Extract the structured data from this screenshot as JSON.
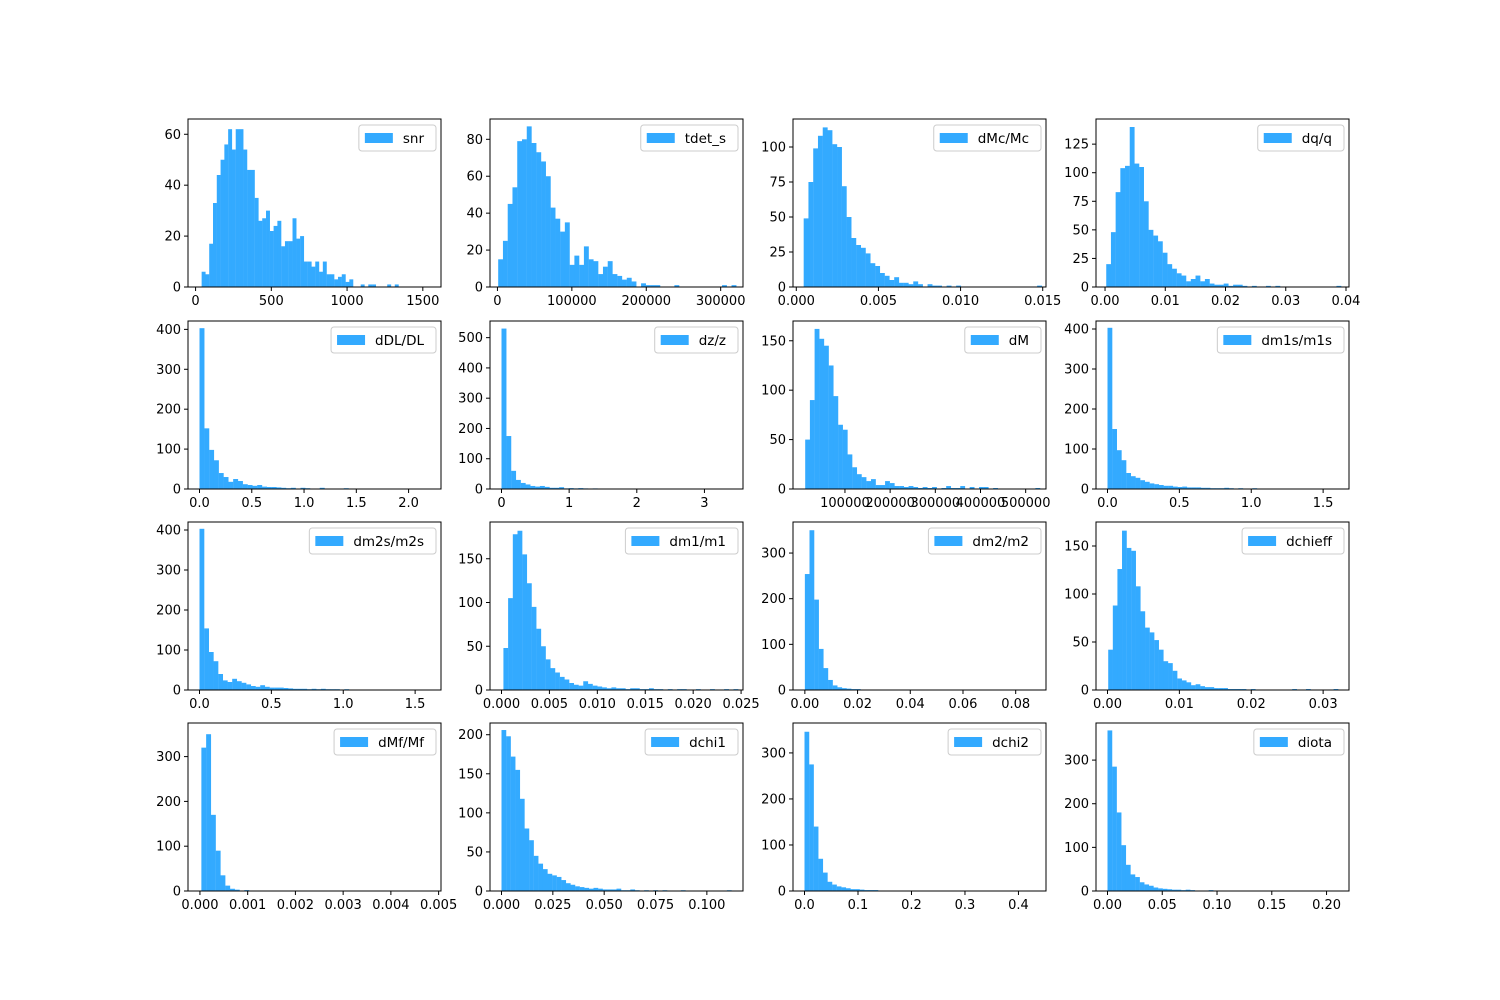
{
  "figure": {
    "background": "#ffffff",
    "bar_color": "#33aaff"
  },
  "chart_data": [
    {
      "type": "bar",
      "name": "snr",
      "legend": "snr",
      "xlim": [
        -50,
        1620
      ],
      "ylim": [
        0,
        66
      ],
      "xticks": [
        0,
        500,
        1000,
        1500
      ],
      "xtick_labels": [
        "0",
        "500",
        "1000",
        "1500"
      ],
      "yticks": [
        0,
        20,
        40,
        60
      ],
      "ytick_labels": [
        "0",
        "20",
        "40",
        "60"
      ],
      "bin_start": 40,
      "bin_width": 25,
      "counts": [
        6,
        5,
        17,
        33,
        44,
        50,
        56,
        62,
        54,
        62,
        62,
        54,
        46,
        46,
        35,
        26,
        27,
        30,
        22,
        24,
        26,
        16,
        18,
        18,
        27,
        19,
        20,
        10,
        10,
        8,
        10,
        6,
        10,
        5,
        5,
        3,
        4,
        5,
        2,
        3,
        0,
        0,
        1,
        0,
        1,
        1,
        0,
        0,
        0,
        1,
        0,
        1
      ]
    },
    {
      "type": "bar",
      "name": "tdet_s",
      "legend": "tdet_s",
      "xlim": [
        -10000,
        330000
      ],
      "ylim": [
        0,
        91
      ],
      "xticks": [
        0,
        100000,
        200000,
        300000
      ],
      "xtick_labels": [
        "0",
        "100000",
        "200000",
        "300000"
      ],
      "yticks": [
        0,
        20,
        40,
        60,
        80
      ],
      "ytick_labels": [
        "0",
        "20",
        "40",
        "60",
        "80"
      ],
      "bin_start": 1000,
      "bin_width": 6400,
      "counts": [
        15,
        25,
        45,
        54,
        79,
        80,
        87,
        78,
        73,
        68,
        60,
        43,
        37,
        30,
        35,
        12,
        17,
        12,
        22,
        15,
        14,
        7,
        11,
        14,
        7,
        6,
        4,
        5,
        3,
        0,
        2,
        1,
        1,
        1,
        0,
        0,
        0,
        1,
        0,
        0,
        0,
        0,
        0,
        0,
        0,
        0,
        0,
        1,
        0,
        1
      ]
    },
    {
      "type": "bar",
      "name": "dMc/Mc",
      "legend": "dMc/Mc",
      "xlim": [
        -0.0002,
        0.0152
      ],
      "ylim": [
        0,
        120
      ],
      "xticks": [
        0,
        0.005,
        0.01,
        0.015
      ],
      "xtick_labels": [
        "0.000",
        "0.005",
        "0.010",
        "0.015"
      ],
      "yticks": [
        0,
        25,
        50,
        75,
        100
      ],
      "ytick_labels": [
        "0",
        "25",
        "50",
        "75",
        "100"
      ],
      "bin_start": 0.00045,
      "bin_width": 0.00029,
      "counts": [
        49,
        75,
        99,
        108,
        114,
        112,
        102,
        100,
        72,
        50,
        35,
        30,
        28,
        24,
        17,
        15,
        10,
        8,
        5,
        7,
        3,
        3,
        2,
        4,
        2,
        0,
        2,
        1,
        1,
        0,
        1,
        0,
        1,
        0,
        0,
        0,
        0,
        0,
        0,
        0,
        0,
        0,
        0,
        0,
        0,
        0,
        0,
        0,
        0,
        1
      ]
    },
    {
      "type": "bar",
      "name": "dq/q",
      "legend": "dq/q",
      "xlim": [
        -0.0015,
        0.0405
      ],
      "ylim": [
        0,
        147
      ],
      "xticks": [
        0,
        0.01,
        0.02,
        0.03,
        0.04
      ],
      "xtick_labels": [
        "0.00",
        "0.01",
        "0.02",
        "0.03",
        "0.04"
      ],
      "yticks": [
        0,
        25,
        50,
        75,
        100,
        125
      ],
      "ytick_labels": [
        "0",
        "25",
        "50",
        "75",
        "100",
        "125"
      ],
      "bin_start": 0.0002,
      "bin_width": 0.00078,
      "counts": [
        20,
        48,
        83,
        104,
        106,
        140,
        108,
        105,
        75,
        50,
        45,
        40,
        30,
        20,
        16,
        12,
        10,
        5,
        7,
        10,
        5,
        7,
        3,
        2,
        2,
        3,
        1,
        2,
        2,
        1,
        0,
        1,
        0,
        0,
        1,
        0,
        1,
        0,
        0,
        0,
        0,
        0,
        0,
        0,
        0,
        0,
        0,
        0,
        0,
        1
      ]
    },
    {
      "type": "bar",
      "name": "dDL/DL",
      "legend": "dDL/DL",
      "xlim": [
        -0.11,
        2.31
      ],
      "ylim": [
        0,
        421
      ],
      "xticks": [
        0,
        0.5,
        1,
        1.5,
        2
      ],
      "xtick_labels": [
        "0.0",
        "0.5",
        "1.0",
        "1.5",
        "2.0"
      ],
      "yticks": [
        0,
        100,
        200,
        300,
        400
      ],
      "ytick_labels": [
        "0",
        "100",
        "200",
        "300",
        "400"
      ],
      "bin_start": 0.0,
      "bin_width": 0.046,
      "counts": [
        403,
        152,
        98,
        72,
        40,
        30,
        18,
        25,
        20,
        12,
        10,
        8,
        10,
        6,
        5,
        5,
        4,
        3,
        2,
        3,
        1,
        3,
        2,
        1,
        1,
        3,
        0,
        1,
        1,
        0,
        2,
        1,
        0,
        1,
        0,
        0,
        0,
        0,
        0,
        0,
        0,
        0,
        0,
        0,
        0,
        0,
        0,
        0,
        0,
        1
      ]
    },
    {
      "type": "bar",
      "name": "dz/z",
      "legend": "dz/z",
      "xlim": [
        -0.17,
        3.57
      ],
      "ylim": [
        0,
        555
      ],
      "xticks": [
        0,
        1,
        2,
        3
      ],
      "xtick_labels": [
        "0",
        "1",
        "2",
        "3"
      ],
      "yticks": [
        0,
        100,
        200,
        300,
        400,
        500
      ],
      "ytick_labels": [
        "0",
        "100",
        "200",
        "300",
        "400",
        "500"
      ],
      "bin_start": 0.0,
      "bin_width": 0.071,
      "counts": [
        530,
        175,
        60,
        30,
        20,
        15,
        10,
        8,
        10,
        7,
        4,
        4,
        6,
        2,
        3,
        2,
        3,
        2,
        1,
        2,
        1,
        0,
        1,
        1,
        0,
        1,
        1,
        0,
        1,
        0,
        1,
        0,
        0,
        1,
        0,
        0,
        1,
        0,
        0,
        0,
        0,
        0,
        0,
        0,
        0,
        0,
        0,
        0,
        0,
        1
      ]
    },
    {
      "type": "bar",
      "name": "dM",
      "legend": "dM",
      "xlim": [
        -15000,
        545000
      ],
      "ylim": [
        0,
        170
      ],
      "xticks": [
        100000,
        200000,
        300000,
        400000,
        500000
      ],
      "xtick_labels": [
        "100000",
        "200000",
        "300000",
        "400000",
        "500000"
      ],
      "yticks": [
        0,
        50,
        100,
        150
      ],
      "ytick_labels": [
        "0",
        "50",
        "100",
        "150"
      ],
      "bin_start": 12000,
      "bin_width": 10400,
      "counts": [
        50,
        90,
        162,
        152,
        145,
        125,
        94,
        65,
        60,
        35,
        22,
        15,
        12,
        8,
        10,
        4,
        4,
        8,
        6,
        3,
        3,
        2,
        3,
        2,
        1,
        2,
        1,
        2,
        0,
        1,
        3,
        1,
        1,
        3,
        0,
        2,
        0,
        2,
        2,
        0,
        1,
        0,
        0,
        0,
        0,
        0,
        0,
        0,
        0,
        1
      ]
    },
    {
      "type": "bar",
      "name": "dm1s/m1s",
      "legend": "dm1s/m1s",
      "xlim": [
        -0.08,
        1.68
      ],
      "ylim": [
        0,
        420
      ],
      "xticks": [
        0,
        0.5,
        1,
        1.5
      ],
      "xtick_labels": [
        "0.0",
        "0.5",
        "1.0",
        "1.5"
      ],
      "yticks": [
        0,
        100,
        200,
        300,
        400
      ],
      "ytick_labels": [
        "0",
        "100",
        "200",
        "300",
        "400"
      ],
      "bin_start": 0.0,
      "bin_width": 0.0325,
      "counts": [
        403,
        150,
        97,
        72,
        40,
        32,
        28,
        22,
        18,
        14,
        12,
        10,
        8,
        8,
        6,
        5,
        6,
        4,
        4,
        4,
        3,
        3,
        2,
        2,
        2,
        3,
        2,
        1,
        2,
        1,
        1,
        2,
        1,
        1,
        1,
        0,
        0,
        0,
        0,
        0,
        0,
        1,
        0,
        0,
        0,
        0,
        0,
        0,
        0,
        1
      ]
    },
    {
      "type": "bar",
      "name": "dm2s/m2s",
      "legend": "dm2s/m2s",
      "xlim": [
        -0.08,
        1.68
      ],
      "ylim": [
        0,
        420
      ],
      "xticks": [
        0,
        0.5,
        1,
        1.5
      ],
      "xtick_labels": [
        "0.0",
        "0.5",
        "1.0",
        "1.5"
      ],
      "yticks": [
        0,
        100,
        200,
        300,
        400
      ],
      "ytick_labels": [
        "0",
        "100",
        "200",
        "300",
        "400"
      ],
      "bin_start": 0.0,
      "bin_width": 0.0325,
      "counts": [
        403,
        154,
        95,
        72,
        40,
        24,
        20,
        28,
        22,
        18,
        14,
        10,
        8,
        12,
        8,
        6,
        6,
        6,
        5,
        4,
        3,
        3,
        3,
        2,
        3,
        2,
        3,
        2,
        2,
        2,
        1,
        2,
        1,
        1,
        0,
        0,
        0,
        0,
        0,
        0,
        0,
        0,
        0,
        0,
        0,
        0,
        0,
        0,
        0,
        1
      ]
    },
    {
      "type": "bar",
      "name": "dm1/m1",
      "legend": "dm1/m1",
      "xlim": [
        -0.0012,
        0.0252
      ],
      "ylim": [
        0,
        192
      ],
      "xticks": [
        0,
        0.005,
        0.01,
        0.015,
        0.02,
        0.025
      ],
      "xtick_labels": [
        "0.000",
        "0.005",
        "0.010",
        "0.015",
        "0.020",
        "0.025"
      ],
      "yticks": [
        0,
        50,
        100,
        150
      ],
      "ytick_labels": [
        "0",
        "50",
        "100",
        "150"
      ],
      "bin_start": 0.0002,
      "bin_width": 0.00049,
      "counts": [
        48,
        105,
        178,
        182,
        155,
        122,
        95,
        70,
        50,
        35,
        25,
        20,
        15,
        12,
        8,
        6,
        5,
        10,
        7,
        5,
        4,
        3,
        2,
        3,
        2,
        2,
        1,
        2,
        2,
        1,
        1,
        2,
        1,
        1,
        0,
        1,
        0,
        1,
        1,
        0,
        0,
        1,
        0,
        0,
        1,
        0,
        0,
        1,
        0,
        1
      ]
    },
    {
      "type": "bar",
      "name": "dm2/m2",
      "legend": "dm2/m2",
      "xlim": [
        -0.0045,
        0.0915
      ],
      "ylim": [
        0,
        368
      ],
      "xticks": [
        0,
        0.02,
        0.04,
        0.06,
        0.08
      ],
      "xtick_labels": [
        "0.00",
        "0.02",
        "0.04",
        "0.06",
        "0.08"
      ],
      "yticks": [
        0,
        100,
        200,
        300
      ],
      "ytick_labels": [
        "0",
        "100",
        "200",
        "300"
      ],
      "bin_start": 0.0,
      "bin_width": 0.00176,
      "counts": [
        254,
        350,
        198,
        90,
        48,
        22,
        10,
        6,
        4,
        3,
        2,
        2,
        1,
        1,
        0,
        1,
        0,
        0,
        0,
        0,
        0,
        0,
        0,
        0,
        0,
        0,
        0,
        0,
        0,
        0,
        0,
        0,
        0,
        0,
        0,
        0,
        0,
        0,
        0,
        0,
        0,
        0,
        0,
        0,
        0,
        0,
        0,
        0,
        0,
        1
      ]
    },
    {
      "type": "bar",
      "name": "dchieff",
      "legend": "dchieff",
      "xlim": [
        -0.0016,
        0.0336
      ],
      "ylim": [
        0,
        175
      ],
      "xticks": [
        0,
        0.01,
        0.02,
        0.03
      ],
      "xtick_labels": [
        "0.00",
        "0.01",
        "0.02",
        "0.03"
      ],
      "yticks": [
        0,
        50,
        100,
        150
      ],
      "ytick_labels": [
        "0",
        "50",
        "100",
        "150"
      ],
      "bin_start": 0.0001,
      "bin_width": 0.00064,
      "counts": [
        42,
        88,
        126,
        166,
        148,
        145,
        108,
        82,
        65,
        60,
        52,
        42,
        30,
        28,
        20,
        12,
        10,
        8,
        5,
        6,
        4,
        3,
        3,
        2,
        2,
        2,
        1,
        1,
        1,
        1,
        0,
        1,
        0,
        0,
        0,
        0,
        0,
        0,
        0,
        0,
        1,
        0,
        0,
        1,
        0,
        0,
        0,
        0,
        0,
        1
      ]
    },
    {
      "type": "bar",
      "name": "dMf/Mf",
      "legend": "dMf/Mf",
      "xlim": [
        -0.00025,
        0.00505
      ],
      "ylim": [
        0,
        375
      ],
      "xticks": [
        0,
        0.001,
        0.002,
        0.003,
        0.004,
        0.005
      ],
      "xtick_labels": [
        "0.000",
        "0.001",
        "0.002",
        "0.003",
        "0.004",
        "0.005"
      ],
      "yticks": [
        0,
        100,
        200,
        300
      ],
      "ytick_labels": [
        "0",
        "100",
        "200",
        "300"
      ],
      "bin_start": 3e-05,
      "bin_width": 0.0001,
      "counts": [
        320,
        350,
        170,
        90,
        35,
        12,
        5,
        3,
        1,
        2,
        1,
        0,
        0,
        0,
        0,
        0,
        0,
        0,
        0,
        0,
        0,
        0,
        0,
        0,
        0,
        0,
        0,
        0,
        0,
        0,
        0,
        0,
        0,
        0,
        0,
        0,
        0,
        0,
        0,
        0,
        0,
        0,
        0,
        0,
        0,
        0,
        0,
        0,
        0,
        1
      ]
    },
    {
      "type": "bar",
      "name": "dchi1",
      "legend": "dchi1",
      "xlim": [
        -0.0056,
        0.1176
      ],
      "ylim": [
        0,
        215
      ],
      "xticks": [
        0,
        0.025,
        0.05,
        0.075,
        0.1
      ],
      "xtick_labels": [
        "0.000",
        "0.025",
        "0.050",
        "0.075",
        "0.100"
      ],
      "yticks": [
        0,
        50,
        100,
        150,
        200
      ],
      "ytick_labels": [
        "0",
        "50",
        "100",
        "150",
        "200"
      ],
      "bin_start": 0.0,
      "bin_width": 0.00224,
      "counts": [
        206,
        198,
        172,
        155,
        118,
        80,
        65,
        45,
        35,
        28,
        22,
        20,
        18,
        14,
        10,
        8,
        6,
        5,
        4,
        3,
        4,
        3,
        2,
        2,
        2,
        3,
        1,
        1,
        2,
        1,
        0,
        1,
        0,
        1,
        0,
        1,
        0,
        0,
        0,
        1,
        0,
        0,
        0,
        0,
        0,
        0,
        0,
        0,
        0,
        1
      ]
    },
    {
      "type": "bar",
      "name": "dchi2",
      "legend": "dchi2",
      "xlim": [
        -0.0215,
        0.4515
      ],
      "ylim": [
        0,
        365
      ],
      "xticks": [
        0,
        0.1,
        0.2,
        0.3,
        0.4
      ],
      "xtick_labels": [
        "0.0",
        "0.1",
        "0.2",
        "0.3",
        "0.4"
      ],
      "yticks": [
        0,
        100,
        200,
        300
      ],
      "ytick_labels": [
        "0",
        "100",
        "200",
        "300"
      ],
      "bin_start": 0.0,
      "bin_width": 0.0086,
      "counts": [
        346,
        275,
        140,
        70,
        40,
        20,
        14,
        10,
        8,
        6,
        4,
        4,
        3,
        2,
        2,
        2,
        1,
        1,
        1,
        1,
        0,
        1,
        0,
        1,
        0,
        0,
        0,
        0,
        0,
        0,
        0,
        0,
        0,
        1,
        0,
        0,
        0,
        0,
        0,
        0,
        0,
        1,
        0,
        0,
        0,
        0,
        0,
        0,
        0,
        1
      ]
    },
    {
      "type": "bar",
      "name": "diota",
      "legend": "diota",
      "xlim": [
        -0.0105,
        0.2205
      ],
      "ylim": [
        0,
        385
      ],
      "xticks": [
        0,
        0.05,
        0.1,
        0.15,
        0.2
      ],
      "xtick_labels": [
        "0.00",
        "0.05",
        "0.10",
        "0.15",
        "0.20"
      ],
      "yticks": [
        0,
        100,
        200,
        300
      ],
      "ytick_labels": [
        "0",
        "100",
        "200",
        "300"
      ],
      "bin_start": 0.0,
      "bin_width": 0.0042,
      "counts": [
        368,
        285,
        180,
        105,
        60,
        38,
        32,
        20,
        15,
        12,
        8,
        6,
        5,
        4,
        3,
        3,
        2,
        3,
        2,
        1,
        1,
        1,
        2,
        1,
        0,
        0,
        1,
        0,
        1,
        0,
        0,
        0,
        1,
        0,
        0,
        0,
        0,
        0,
        0,
        0,
        0,
        0,
        0,
        0,
        0,
        0,
        0,
        0,
        0,
        1
      ]
    }
  ]
}
